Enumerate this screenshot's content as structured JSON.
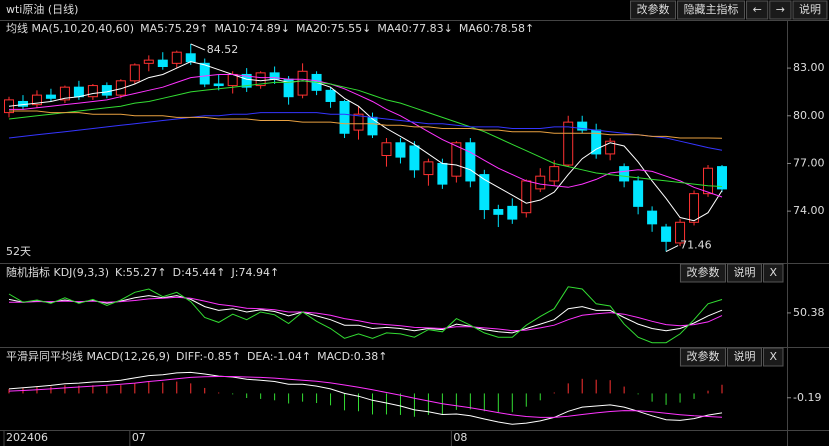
{
  "toolbar": {
    "title": "wti原油 (日线)",
    "buttons": [
      "改参数",
      "隐藏主指标",
      "←",
      "→",
      "说明"
    ]
  },
  "chart_data": [
    {
      "type": "candlestick",
      "indicator": "均线 MA(5,10,20,40,60)",
      "period_label": "52天",
      "categories": [
        "202406",
        null,
        null,
        null,
        null,
        null,
        null,
        null,
        null,
        "07",
        null,
        null,
        null,
        null,
        null,
        null,
        null,
        null,
        null,
        null,
        null,
        null,
        null,
        null,
        null,
        null,
        null,
        null,
        null,
        null,
        null,
        null,
        "08",
        null,
        null,
        null,
        null,
        null,
        null,
        null,
        null,
        null,
        null,
        null,
        null,
        null,
        null,
        null,
        null,
        null,
        null,
        null
      ],
      "up_color": "#ff3232",
      "down_color": "#00e5ff",
      "open": [
        80.2,
        80.9,
        80.7,
        81.3,
        81.0,
        81.8,
        81.2,
        81.9,
        81.3,
        82.2,
        83.3,
        83.5,
        83.3,
        83.9,
        83.3,
        82.0,
        81.9,
        82.6,
        81.9,
        82.7,
        82.3,
        81.3,
        82.6,
        81.6,
        80.9,
        79.1,
        79.9,
        77.5,
        78.3,
        78.1,
        76.3,
        77.0,
        76.2,
        78.3,
        76.3,
        74.1,
        74.3,
        73.9,
        75.4,
        75.9,
        76.9,
        79.6,
        79.1,
        77.6,
        76.8,
        75.9,
        74.0,
        73.0,
        72.0,
        73.3,
        75.1,
        76.8
      ],
      "high": [
        81.2,
        81.3,
        81.6,
        81.7,
        81.9,
        82.2,
        82.0,
        82.1,
        82.3,
        83.3,
        83.8,
        84.0,
        84.1,
        84.52,
        83.6,
        82.6,
        82.8,
        83.0,
        82.8,
        83.1,
        82.5,
        83.3,
        82.8,
        81.8,
        81.0,
        80.6,
        80.2,
        78.6,
        78.6,
        78.4,
        77.3,
        77.3,
        78.4,
        78.6,
        76.6,
        74.4,
        74.8,
        76.0,
        76.7,
        77.2,
        80.0,
        80.0,
        79.5,
        78.6,
        77.0,
        76.2,
        74.3,
        73.2,
        73.5,
        75.3,
        76.9,
        76.9
      ],
      "low": [
        79.9,
        80.4,
        80.5,
        80.9,
        80.8,
        81.0,
        81.0,
        81.1,
        81.1,
        82.0,
        82.8,
        82.9,
        83.0,
        83.2,
        81.8,
        81.6,
        81.4,
        81.5,
        81.7,
        82.0,
        80.7,
        81.1,
        81.3,
        80.5,
        78.6,
        78.5,
        78.6,
        76.8,
        77.0,
        76.1,
        75.6,
        75.4,
        75.8,
        75.5,
        73.5,
        73.0,
        73.2,
        73.6,
        75.2,
        75.6,
        76.8,
        78.9,
        77.3,
        77.2,
        75.5,
        73.8,
        72.7,
        71.46,
        71.8,
        73.1,
        74.9,
        75.2
      ],
      "close": [
        81.0,
        80.6,
        81.3,
        81.1,
        81.8,
        81.2,
        81.9,
        81.3,
        82.2,
        83.2,
        83.5,
        83.1,
        84.0,
        83.4,
        82.0,
        81.9,
        82.6,
        81.8,
        82.7,
        82.3,
        81.2,
        82.8,
        81.6,
        80.9,
        78.9,
        80.1,
        78.8,
        78.3,
        77.4,
        76.6,
        77.1,
        75.7,
        78.3,
        75.9,
        74.1,
        73.8,
        73.5,
        75.9,
        76.2,
        76.8,
        79.6,
        79.1,
        77.6,
        78.4,
        75.9,
        74.3,
        73.2,
        72.1,
        73.3,
        75.1,
        76.7,
        75.4
      ],
      "high_marker": {
        "value": 84.52,
        "label": "84.52"
      },
      "low_marker": {
        "value": 71.46,
        "label": "71.46"
      },
      "series": [
        {
          "name": "MA5:75.29↑",
          "color": "#ffffff",
          "values": [
            80.6,
            80.7,
            80.8,
            80.9,
            81.1,
            81.2,
            81.4,
            81.5,
            81.7,
            82.0,
            82.4,
            82.6,
            83.0,
            83.4,
            83.2,
            82.9,
            82.6,
            82.3,
            82.2,
            82.3,
            82.1,
            82.2,
            82.1,
            81.8,
            81.1,
            80.6,
            79.8,
            79.2,
            78.7,
            78.2,
            77.6,
            77.0,
            76.9,
            76.6,
            76.0,
            75.5,
            75.0,
            74.5,
            74.7,
            75.2,
            76.3,
            77.3,
            77.9,
            78.3,
            78.1,
            77.1,
            75.9,
            74.8,
            73.6,
            73.4,
            73.9,
            75.29
          ]
        },
        {
          "name": "MA10:74.89↓",
          "color": "#ff33ff",
          "values": [
            80.4,
            80.4,
            80.5,
            80.6,
            80.7,
            80.8,
            80.9,
            81.0,
            81.2,
            81.4,
            81.6,
            81.8,
            82.1,
            82.4,
            82.5,
            82.6,
            82.6,
            82.5,
            82.4,
            82.4,
            82.3,
            82.3,
            82.2,
            82.0,
            81.7,
            81.3,
            80.9,
            80.4,
            80.0,
            79.5,
            79.0,
            78.5,
            78.1,
            77.7,
            77.2,
            76.7,
            76.3,
            75.9,
            75.7,
            75.6,
            75.5,
            75.7,
            76.0,
            76.4,
            76.5,
            76.6,
            76.5,
            76.2,
            75.9,
            75.5,
            75.2,
            74.89
          ]
        },
        {
          "name": "MA20:75.55↓",
          "color": "#33dd33",
          "values": [
            79.8,
            79.9,
            80.0,
            80.1,
            80.2,
            80.3,
            80.4,
            80.5,
            80.6,
            80.8,
            80.9,
            81.1,
            81.3,
            81.5,
            81.6,
            81.7,
            81.8,
            81.9,
            82.0,
            82.1,
            82.1,
            82.2,
            82.1,
            82.0,
            81.8,
            81.6,
            81.3,
            81.0,
            80.8,
            80.5,
            80.2,
            79.9,
            79.6,
            79.3,
            79.0,
            78.6,
            78.2,
            77.8,
            77.4,
            77.0,
            76.8,
            76.6,
            76.4,
            76.3,
            76.2,
            76.1,
            76.0,
            75.9,
            75.8,
            75.7,
            75.6,
            75.55
          ]
        },
        {
          "name": "MA40:77.83↓",
          "color": "#3535ff",
          "values": [
            78.6,
            78.7,
            78.8,
            78.9,
            79.0,
            79.1,
            79.2,
            79.3,
            79.4,
            79.5,
            79.6,
            79.7,
            79.8,
            79.9,
            80.0,
            80.0,
            80.1,
            80.1,
            80.2,
            80.2,
            80.2,
            80.2,
            80.2,
            80.1,
            80.1,
            80.0,
            79.9,
            79.8,
            79.7,
            79.6,
            79.5,
            79.5,
            79.4,
            79.3,
            79.3,
            79.3,
            79.2,
            79.2,
            79.2,
            79.3,
            79.3,
            79.2,
            79.1,
            79.0,
            78.9,
            78.8,
            78.7,
            78.6,
            78.4,
            78.2,
            78.0,
            77.83
          ]
        },
        {
          "name": "MA60:78.58↑",
          "color": "#e8a040",
          "values": [
            80.3,
            80.3,
            80.3,
            80.2,
            80.2,
            80.2,
            80.1,
            80.1,
            80.1,
            80.0,
            80.0,
            80.0,
            79.9,
            79.9,
            79.9,
            79.8,
            79.8,
            79.8,
            79.7,
            79.7,
            79.7,
            79.6,
            79.6,
            79.6,
            79.5,
            79.5,
            79.5,
            79.4,
            79.4,
            79.3,
            79.3,
            79.2,
            79.2,
            79.2,
            79.1,
            79.1,
            79.0,
            79.0,
            79.0,
            78.9,
            78.9,
            78.9,
            78.9,
            78.8,
            78.8,
            78.8,
            78.7,
            78.7,
            78.6,
            78.6,
            78.6,
            78.58
          ]
        }
      ],
      "ylim": [
        70.8,
        85.9
      ],
      "yticks": [
        {
          "value": 83,
          "label": "83.00"
        },
        {
          "value": 80,
          "label": "80.00"
        },
        {
          "value": 77,
          "label": "77.00"
        },
        {
          "value": 74,
          "label": "74.00"
        }
      ]
    },
    {
      "type": "line",
      "indicator": "随机指标 KDJ(9,3,3)",
      "buttons": [
        "改参数",
        "说明",
        "X"
      ],
      "series": [
        {
          "name": "K:55.27↑",
          "color": "#ffffff",
          "values": [
            75,
            70,
            72,
            70,
            74,
            70,
            73,
            68,
            72,
            78,
            82,
            78,
            82,
            75,
            62,
            55,
            58,
            52,
            56,
            53,
            45,
            52,
            45,
            38,
            28,
            28,
            22,
            24,
            22,
            18,
            22,
            20,
            30,
            26,
            20,
            16,
            14,
            22,
            30,
            38,
            58,
            62,
            55,
            55,
            42,
            30,
            22,
            18,
            22,
            32,
            45,
            55.27
          ]
        },
        {
          "name": "D:45.44↑",
          "color": "#ff33ff",
          "values": [
            70,
            70,
            71,
            71,
            72,
            71,
            72,
            70,
            71,
            73,
            76,
            77,
            79,
            77,
            72,
            66,
            63,
            59,
            58,
            56,
            52,
            52,
            50,
            46,
            40,
            36,
            31,
            29,
            27,
            24,
            23,
            22,
            25,
            25,
            23,
            21,
            18,
            19,
            23,
            28,
            38,
            46,
            49,
            51,
            48,
            42,
            35,
            29,
            27,
            29,
            34,
            45.44
          ]
        },
        {
          "name": "J:74.94↑",
          "color": "#33dd33",
          "values": [
            85,
            70,
            74,
            68,
            78,
            68,
            75,
            64,
            74,
            88,
            94,
            80,
            88,
            71,
            42,
            33,
            48,
            38,
            52,
            47,
            31,
            52,
            35,
            22,
            4,
            12,
            4,
            14,
            12,
            6,
            20,
            16,
            40,
            28,
            14,
            6,
            6,
            28,
            44,
            58,
            98,
            94,
            67,
            63,
            30,
            6,
            -4,
            -4,
            12,
            38,
            67,
            74.94
          ]
        }
      ],
      "ylim": [
        -10,
        105
      ],
      "yticks": [
        50.38
      ]
    },
    {
      "type": "macd",
      "indicator": "平滑异同平均线 MACD(12,26,9)",
      "buttons": [
        "改参数",
        "说明",
        "X"
      ],
      "series": [
        {
          "name": "DIFF:-0.85↑",
          "color": "#ffffff",
          "style": "line",
          "values": [
            0.2,
            0.25,
            0.3,
            0.35,
            0.42,
            0.45,
            0.5,
            0.52,
            0.58,
            0.68,
            0.78,
            0.82,
            0.9,
            0.92,
            0.85,
            0.76,
            0.72,
            0.62,
            0.58,
            0.52,
            0.4,
            0.4,
            0.32,
            0.2,
            0.0,
            -0.12,
            -0.3,
            -0.42,
            -0.55,
            -0.72,
            -0.8,
            -0.92,
            -0.9,
            -0.98,
            -1.12,
            -1.25,
            -1.35,
            -1.3,
            -1.2,
            -1.05,
            -0.78,
            -0.6,
            -0.55,
            -0.5,
            -0.6,
            -0.78,
            -0.98,
            -1.15,
            -1.18,
            -1.1,
            -0.95,
            -0.85
          ]
        },
        {
          "name": "DEA:-1.04↑",
          "color": "#ff33ff",
          "style": "line",
          "values": [
            0.1,
            0.13,
            0.16,
            0.2,
            0.24,
            0.28,
            0.32,
            0.36,
            0.4,
            0.45,
            0.52,
            0.58,
            0.64,
            0.7,
            0.73,
            0.74,
            0.74,
            0.72,
            0.7,
            0.67,
            0.62,
            0.58,
            0.53,
            0.46,
            0.37,
            0.27,
            0.16,
            0.04,
            -0.08,
            -0.21,
            -0.33,
            -0.45,
            -0.54,
            -0.63,
            -0.73,
            -0.84,
            -0.94,
            -1.01,
            -1.05,
            -1.05,
            -1.0,
            -0.92,
            -0.85,
            -0.79,
            -0.75,
            -0.76,
            -0.8,
            -0.87,
            -0.93,
            -0.98,
            -1.01,
            -1.04
          ]
        },
        {
          "name": "MACD:0.38↑",
          "color": "#33dd33",
          "style": "bar",
          "up_color": "#ff3232",
          "down_color": "#33dd33",
          "values": [
            0.2,
            0.24,
            0.28,
            0.3,
            0.36,
            0.34,
            0.36,
            0.32,
            0.36,
            0.46,
            0.52,
            0.48,
            0.52,
            0.44,
            0.24,
            0.04,
            -0.04,
            -0.2,
            -0.24,
            -0.3,
            -0.44,
            -0.36,
            -0.42,
            -0.52,
            -0.74,
            -0.78,
            -0.92,
            -0.92,
            -0.94,
            -1.02,
            -0.94,
            -0.94,
            -0.72,
            -0.7,
            -0.78,
            -0.82,
            -0.82,
            -0.58,
            -0.3,
            0.04,
            0.44,
            0.64,
            0.6,
            0.58,
            0.3,
            -0.04,
            -0.36,
            -0.5,
            -0.4,
            -0.24,
            0.12,
            0.38
          ]
        }
      ],
      "ylim": [
        -1.6,
        1.2
      ],
      "yticks": [
        -0.19
      ]
    }
  ]
}
